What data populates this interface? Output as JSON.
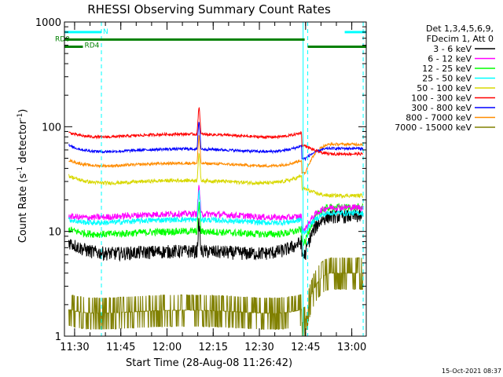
{
  "chart_data": {
    "type": "line",
    "title": "RHESSI Observing Summary Count Rates",
    "xlabel": "Start Time (28-Aug-08 11:26:42)",
    "ylabel_main": "Count Rate (s",
    "ylabel_sup1": "-1",
    "ylabel_mid": " detector",
    "ylabel_sup2": "-1",
    "ylabel_end": ")",
    "yscale": "log",
    "ylim": [
      1,
      1000
    ],
    "xlim_minutes": [
      0,
      98
    ],
    "x_ticks": [
      {
        "label": "11:30",
        "minute": 3.3
      },
      {
        "label": "11:45",
        "minute": 18.3
      },
      {
        "label": "12:00",
        "minute": 33.3
      },
      {
        "label": "12:15",
        "minute": 48.3
      },
      {
        "label": "12:30",
        "minute": 63.3
      },
      {
        "label": "12:45",
        "minute": 78.3
      },
      {
        "label": "13:00",
        "minute": 93.3
      }
    ],
    "y_ticks": [
      {
        "label": "1",
        "value": 1
      },
      {
        "label": "10",
        "value": 10
      },
      {
        "label": "100",
        "value": 100
      },
      {
        "label": "1000",
        "value": 1000
      }
    ],
    "legend_header": [
      "Det 1,3,4,5,6,9,",
      "FDecim 1, Att 0"
    ],
    "legend_placement": "right",
    "series": [
      {
        "name": "3 - 6 keV",
        "color": "#000000",
        "start": 5.5,
        "edge": 8.0,
        "mid": 5.5,
        "end": 14,
        "noise": 0.15
      },
      {
        "name": "6 - 12 keV",
        "color": "#ff00ff",
        "start": 12,
        "edge": 14,
        "mid": 12.5,
        "end": 17,
        "noise": 0.07
      },
      {
        "name": "12 - 25 keV",
        "color": "#00ff00",
        "start": 8.5,
        "edge": 10.5,
        "mid": 8.5,
        "end": 17,
        "noise": 0.08
      },
      {
        "name": "25 - 50 keV",
        "color": "#00ffff",
        "start": 11,
        "edge": 13,
        "mid": 11,
        "end": 15,
        "noise": 0.06
      },
      {
        "name": "50 - 100 keV",
        "color": "#d8d800",
        "start": 30,
        "edge": 34,
        "mid": 26,
        "end": 22,
        "noise": 0.04
      },
      {
        "name": "100 - 300 keV",
        "color": "#ff0000",
        "start": 80,
        "edge": 88,
        "mid": 72,
        "end": 55,
        "noise": 0.03
      },
      {
        "name": "300 - 800 keV",
        "color": "#0000ff",
        "start": 58,
        "edge": 66,
        "mid": 52,
        "end": 62,
        "noise": 0.03
      },
      {
        "name": "800 - 7000 keV",
        "color": "#ff8c00",
        "start": 42,
        "edge": 48,
        "mid": 38,
        "end": 68,
        "noise": 0.03
      },
      {
        "name": "7000 - 15000 keV",
        "color": "#808000",
        "start": 1.5,
        "edge": 1.8,
        "mid": 1.5,
        "end": 4,
        "noise": 0.25
      }
    ],
    "saa_minutes": [
      0,
      77
    ],
    "night_minutes": [
      [
        0,
        12
      ],
      [
        78,
        98
      ]
    ],
    "intervals": [
      {
        "label": "N",
        "color": "#00ffff",
        "from": 0,
        "to": 12,
        "level": 800
      },
      {
        "label": "",
        "color": "#00ffff",
        "from": 91,
        "to": 98,
        "level": 800
      },
      {
        "label": "RD0",
        "color": "#008000",
        "from": 0,
        "to": 78,
        "level": 680
      },
      {
        "label": "RD4",
        "color": "#008000",
        "from": 0,
        "to": 6,
        "level": 580
      },
      {
        "label": "",
        "color": "#008000",
        "from": 79,
        "to": 98,
        "level": 580
      }
    ],
    "vlines": [
      {
        "minute": 0,
        "color": "#00ffff",
        "style": "solid"
      },
      {
        "minute": 12,
        "color": "#00ffff",
        "style": "dash"
      },
      {
        "minute": 77.5,
        "color": "#00ffff",
        "style": "solid"
      },
      {
        "minute": 79,
        "color": "#00ffff",
        "style": "dash"
      },
      {
        "minute": 97,
        "color": "#00ffff",
        "style": "dash"
      }
    ],
    "flare_minute": 43.7,
    "timestamp": "15-Oct-2021 08:37"
  }
}
